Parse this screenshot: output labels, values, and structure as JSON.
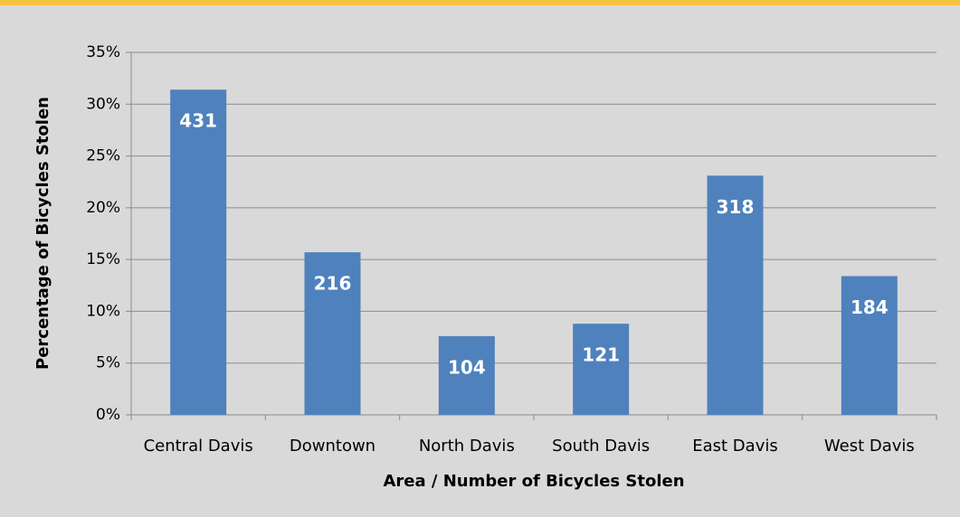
{
  "chart_data": {
    "type": "bar",
    "xlabel": "Area / Number of Bicycles Stolen",
    "ylabel": "Percentage of Bicycles Stolen",
    "categories": [
      "Central Davis",
      "Downtown",
      "North Davis",
      "South Davis",
      "East Davis",
      "West Davis"
    ],
    "values": [
      31.4,
      15.7,
      7.6,
      8.8,
      23.1,
      13.4
    ],
    "counts": [
      431,
      216,
      104,
      121,
      318,
      184
    ],
    "color": "#4f81bd",
    "ylim": [
      0,
      35
    ],
    "yticks": [
      {
        "value": 0,
        "label": "0%"
      },
      {
        "value": 5,
        "label": "5%"
      },
      {
        "value": 10,
        "label": "10%"
      },
      {
        "value": 15,
        "label": "15%"
      },
      {
        "value": 20,
        "label": "20%"
      },
      {
        "value": 25,
        "label": "25%"
      },
      {
        "value": 30,
        "label": "30%"
      },
      {
        "value": 35,
        "label": "35%"
      }
    ],
    "grid": true
  }
}
